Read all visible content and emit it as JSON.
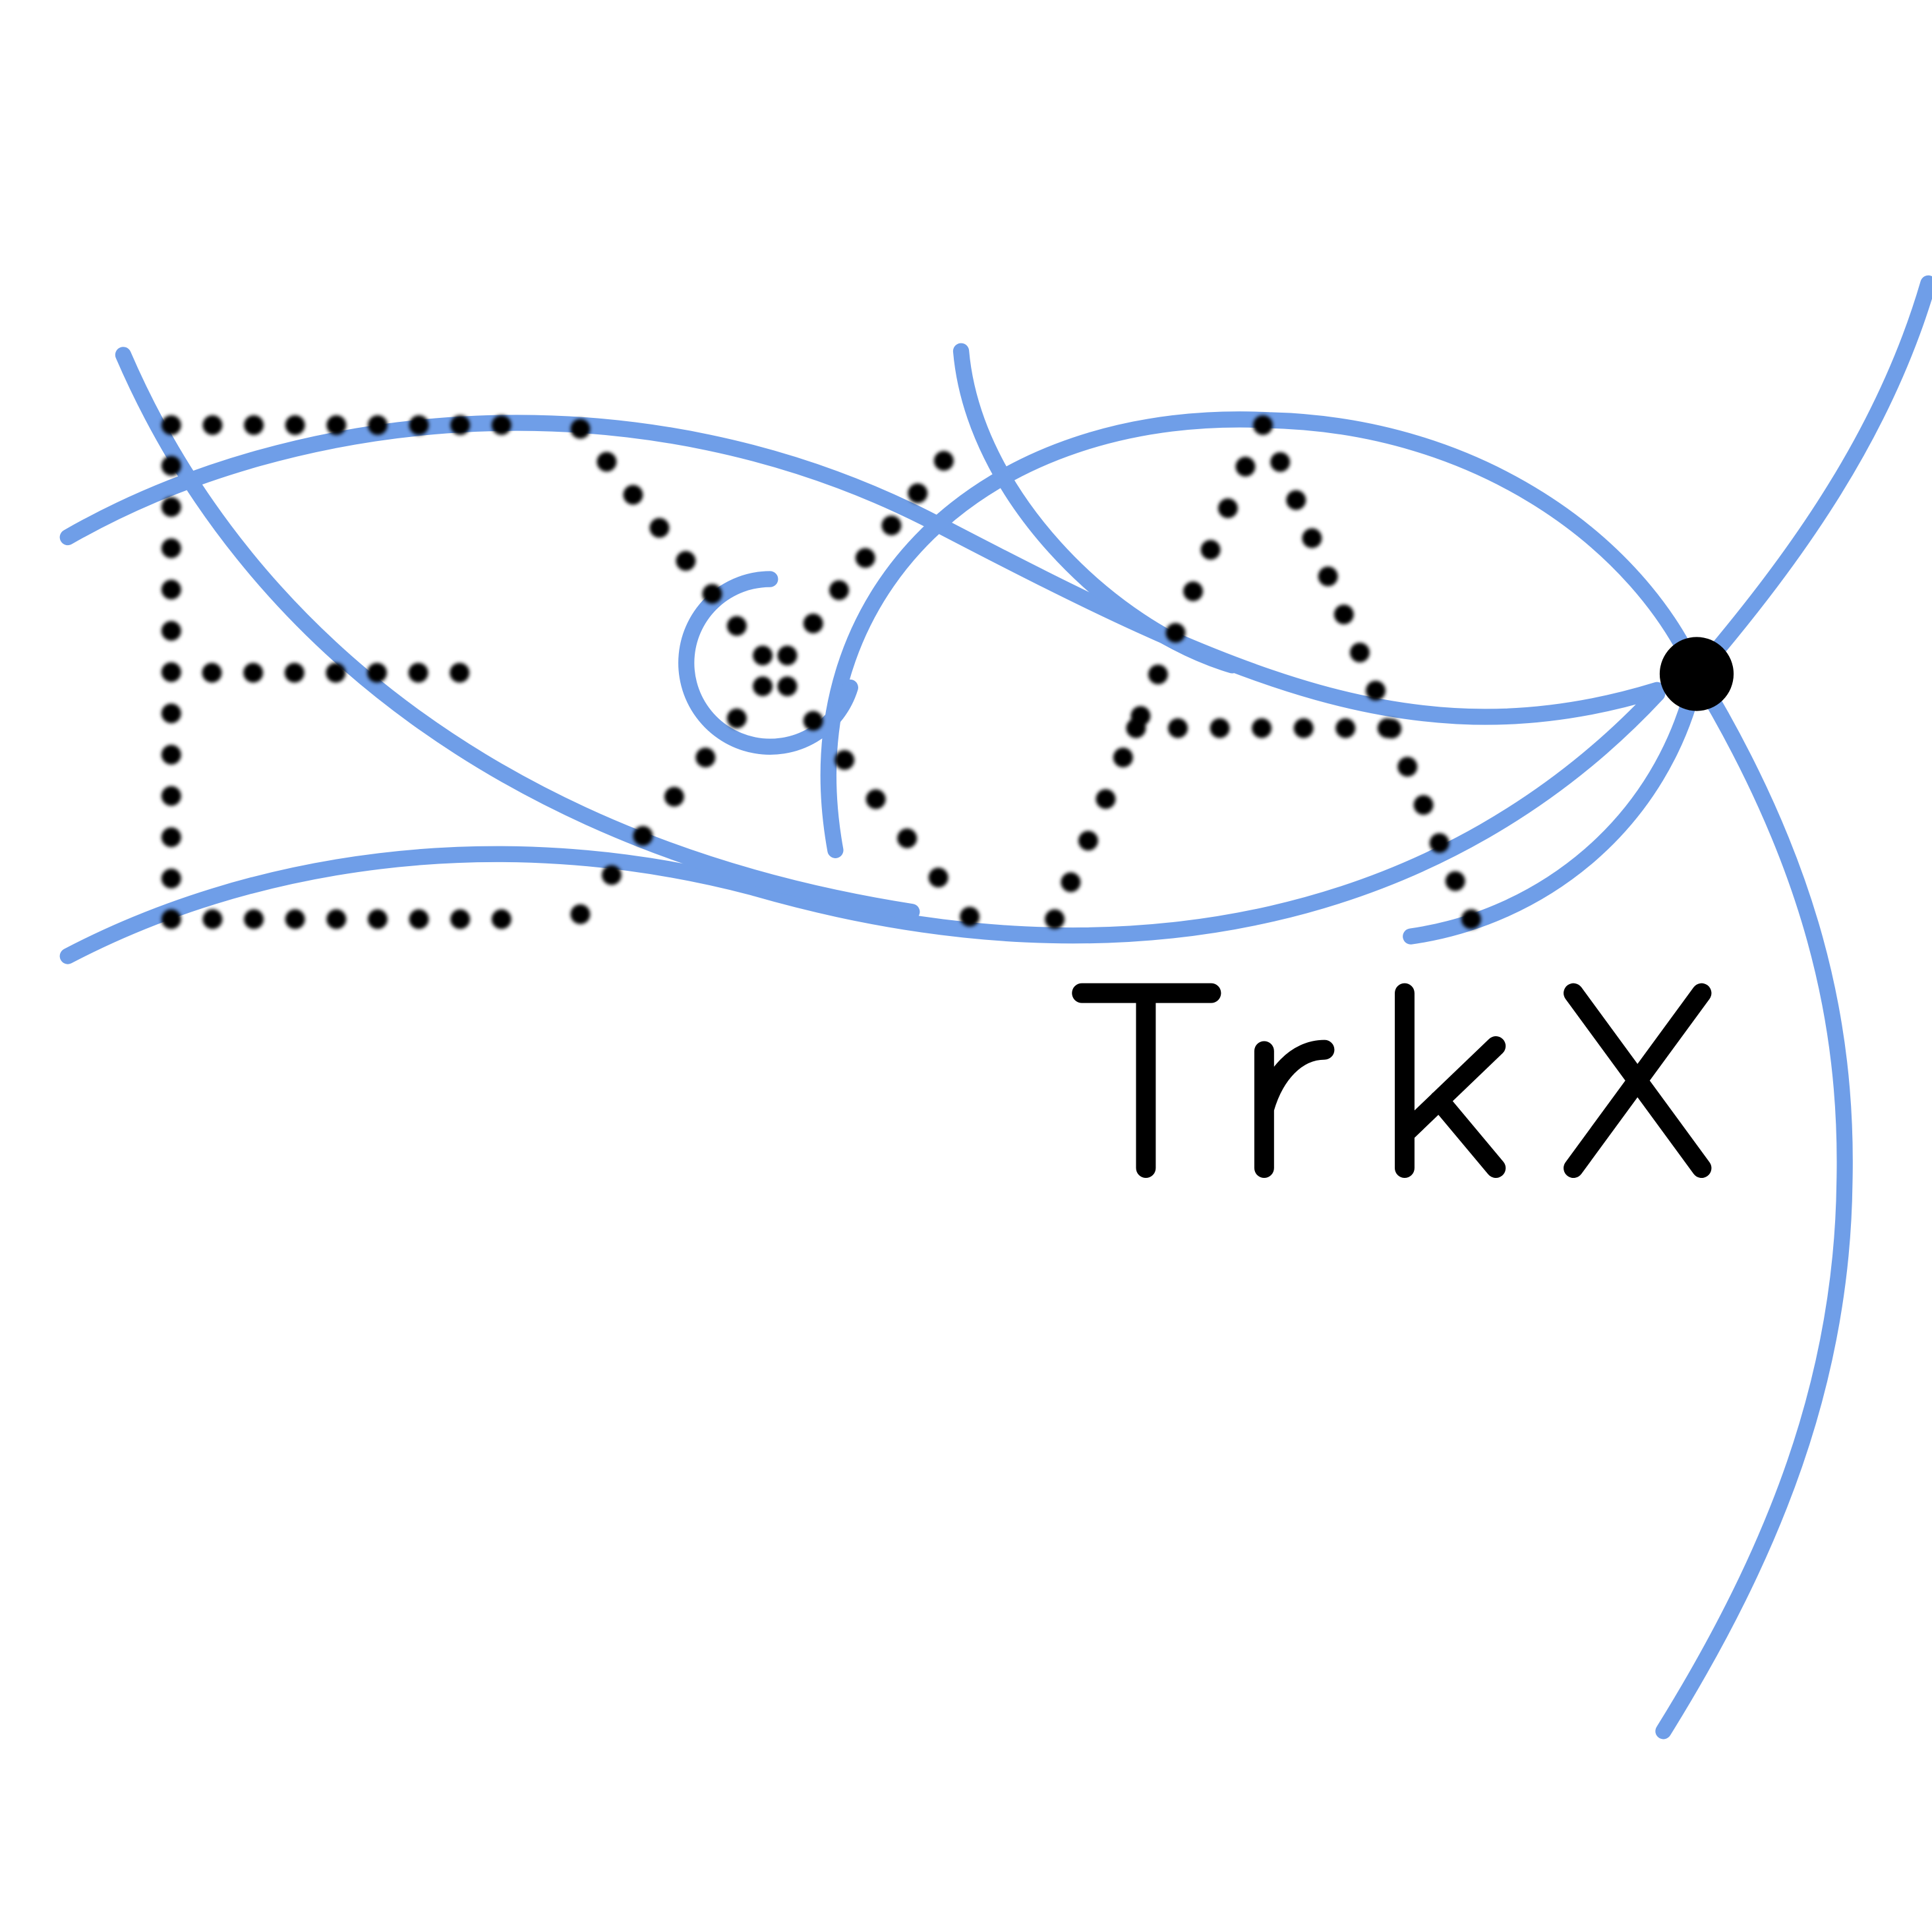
{
  "logo": {
    "name": "Exa.TrkX",
    "wordmark": "TrkX",
    "dotted_letters": "Exa"
  },
  "colors": {
    "background": "#ffffff",
    "track": "#6f9ee8",
    "hit": "#000000",
    "wordmark": "#000000"
  }
}
